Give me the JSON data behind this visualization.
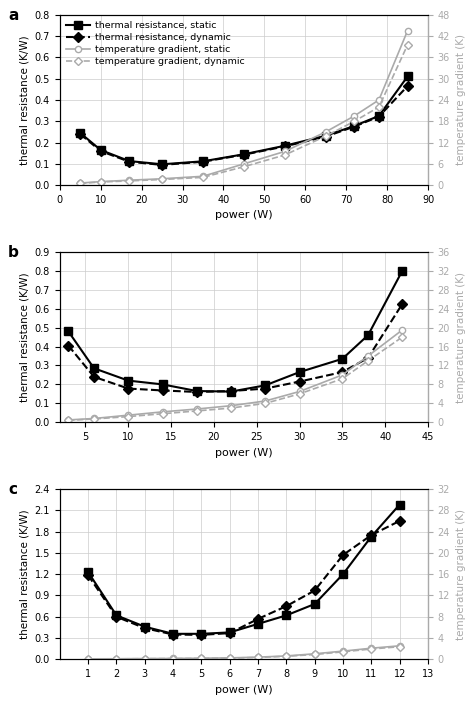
{
  "panel_a": {
    "label": "a",
    "tr_static_x": [
      5,
      10,
      17,
      25,
      35,
      45,
      55,
      65,
      72,
      78,
      85
    ],
    "tr_static_y": [
      0.245,
      0.165,
      0.113,
      0.098,
      0.112,
      0.145,
      0.185,
      0.232,
      0.278,
      0.325,
      0.51
    ],
    "tr_dynamic_x": [
      5,
      10,
      17,
      25,
      35,
      45,
      55,
      65,
      72,
      78,
      85
    ],
    "tr_dynamic_y": [
      0.24,
      0.16,
      0.11,
      0.095,
      0.11,
      0.143,
      0.182,
      0.228,
      0.275,
      0.322,
      0.465
    ],
    "tg_static_x": [
      5,
      10,
      17,
      25,
      35,
      45,
      55,
      65,
      72,
      78,
      85
    ],
    "tg_static_y": [
      0.6,
      1.0,
      1.4,
      1.8,
      2.5,
      6.0,
      9.5,
      15.0,
      19.5,
      24.0,
      43.5
    ],
    "tg_dynamic_x": [
      5,
      10,
      17,
      25,
      35,
      45,
      55,
      65,
      72,
      78,
      85
    ],
    "tg_dynamic_y": [
      0.5,
      0.9,
      1.2,
      1.6,
      2.2,
      5.2,
      8.5,
      13.8,
      18.0,
      22.0,
      39.5
    ],
    "ylim_left": [
      0.0,
      0.8
    ],
    "ylim_right": [
      0.0,
      48
    ],
    "yticks_left": [
      0.0,
      0.1,
      0.2,
      0.3,
      0.4,
      0.5,
      0.6,
      0.7,
      0.8
    ],
    "yticks_right": [
      0,
      6,
      12,
      18,
      24,
      30,
      36,
      42,
      48
    ],
    "xlim": [
      0,
      90
    ],
    "xticks": [
      0,
      10,
      20,
      30,
      40,
      50,
      60,
      70,
      80,
      90
    ],
    "show_legend": true
  },
  "panel_b": {
    "label": "b",
    "tr_static_x": [
      3,
      6,
      10,
      14,
      18,
      22,
      26,
      30,
      35,
      38,
      42
    ],
    "tr_static_y": [
      0.48,
      0.285,
      0.22,
      0.2,
      0.165,
      0.162,
      0.195,
      0.265,
      0.335,
      0.46,
      0.8
    ],
    "tr_dynamic_x": [
      3,
      6,
      10,
      14,
      18,
      22,
      26,
      30,
      35,
      38,
      42
    ],
    "tr_dynamic_y": [
      0.405,
      0.24,
      0.178,
      0.168,
      0.16,
      0.165,
      0.178,
      0.215,
      0.265,
      0.34,
      0.625
    ],
    "tg_static_x": [
      3,
      6,
      10,
      14,
      18,
      22,
      26,
      30,
      35,
      38,
      42
    ],
    "tg_static_y": [
      0.5,
      0.8,
      1.5,
      2.2,
      2.8,
      3.5,
      4.5,
      6.5,
      10.0,
      14.0,
      19.5
    ],
    "tg_dynamic_x": [
      3,
      6,
      10,
      14,
      18,
      22,
      26,
      30,
      35,
      38,
      42
    ],
    "tg_dynamic_y": [
      0.4,
      0.7,
      1.2,
      1.8,
      2.4,
      3.0,
      4.0,
      6.0,
      9.2,
      13.0,
      18.0
    ],
    "ylim_left": [
      0.0,
      0.9
    ],
    "ylim_right": [
      0.0,
      36
    ],
    "yticks_left": [
      0.0,
      0.1,
      0.2,
      0.3,
      0.4,
      0.5,
      0.6,
      0.7,
      0.8,
      0.9
    ],
    "yticks_right": [
      0,
      4,
      8,
      12,
      16,
      20,
      24,
      28,
      32,
      36
    ],
    "xlim": [
      2,
      45
    ],
    "xticks": [
      5,
      10,
      15,
      20,
      25,
      30,
      35,
      40,
      45
    ],
    "show_legend": false
  },
  "panel_c": {
    "label": "c",
    "tr_static_x": [
      1,
      2,
      3,
      4,
      5,
      6,
      7,
      8,
      9,
      10,
      11,
      12
    ],
    "tr_static_y": [
      1.23,
      0.62,
      0.46,
      0.36,
      0.36,
      0.38,
      0.5,
      0.62,
      0.78,
      1.2,
      1.73,
      2.18
    ],
    "tr_dynamic_x": [
      1,
      2,
      3,
      4,
      5,
      6,
      7,
      8,
      9,
      10,
      11,
      12
    ],
    "tr_dynamic_y": [
      1.185,
      0.6,
      0.44,
      0.35,
      0.345,
      0.37,
      0.57,
      0.75,
      0.97,
      1.47,
      1.75,
      1.95
    ],
    "tg_static_x": [
      1,
      2,
      3,
      4,
      5,
      6,
      7,
      8,
      9,
      10,
      11,
      12
    ],
    "tg_static_y": [
      0.1,
      0.12,
      0.15,
      0.18,
      0.22,
      0.28,
      0.42,
      0.65,
      1.05,
      1.55,
      2.1,
      2.55
    ],
    "tg_dynamic_x": [
      1,
      2,
      3,
      4,
      5,
      6,
      7,
      8,
      9,
      10,
      11,
      12
    ],
    "tg_dynamic_y": [
      0.08,
      0.1,
      0.13,
      0.15,
      0.18,
      0.24,
      0.37,
      0.58,
      0.92,
      1.42,
      1.95,
      2.38
    ],
    "ylim_left": [
      0.0,
      2.4
    ],
    "ylim_right": [
      0.0,
      32
    ],
    "yticks_left": [
      0.0,
      0.3,
      0.6,
      0.9,
      1.2,
      1.5,
      1.8,
      2.1,
      2.4
    ],
    "yticks_right": [
      0,
      4,
      8,
      12,
      16,
      20,
      24,
      28,
      32
    ],
    "xlim": [
      0,
      13
    ],
    "xticks": [
      1,
      2,
      3,
      4,
      5,
      6,
      7,
      8,
      9,
      10,
      11,
      12,
      13
    ],
    "show_legend": false
  },
  "legend_labels": [
    "thermal resistance, static",
    "thermal resistance, dynamic",
    "temperature gradient, static",
    "temperature gradient, dynamic"
  ],
  "color_dark": "#000000",
  "color_light": "#aaaaaa",
  "ylabel_left": "thermal resistance (K/W)",
  "ylabel_right": "temperature gradient (K)",
  "xlabel": "power (W)"
}
